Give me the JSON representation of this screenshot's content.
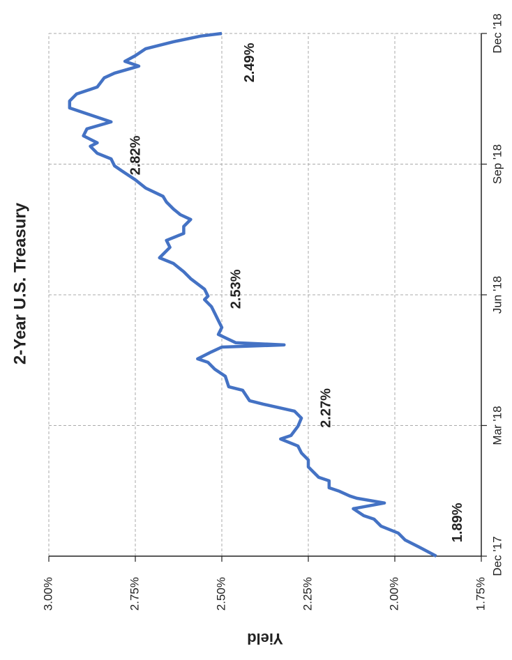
{
  "chart_data": {
    "type": "line",
    "title": "2-Year U.S. Treasury",
    "y_label": "Yield",
    "x": [
      0,
      0.21,
      0.37,
      0.53,
      0.69,
      0.85,
      0.93,
      1.09,
      1.22,
      1.33,
      1.38,
      1.49,
      1.57,
      1.73,
      1.81,
      1.89,
      2.05,
      2.21,
      2.37,
      2.53,
      2.69,
      2.77,
      2.98,
      3.17,
      3.33,
      3.49,
      3.57,
      3.81,
      3.89,
      4.13,
      4.29,
      4.45,
      4.53,
      4.69,
      4.8,
      4.85,
      4.9,
      5.09,
      5.25,
      5.41,
      5.57,
      5.73,
      5.89,
      5.97,
      6.13,
      6.37,
      6.53,
      6.72,
      6.85,
      6.93,
      7.09,
      7.25,
      7.41,
      7.57,
      7.73,
      7.84,
      7.97,
      8.13,
      8.26,
      8.45,
      8.64,
      8.85,
      8.96,
      9.12,
      9.25,
      9.41,
      9.49,
      9.65,
      9.81,
      9.97,
      10.13,
      10.29,
      10.45,
      10.61,
      10.77,
      10.98,
      11.09,
      11.25,
      11.36,
      11.49,
      11.65,
      11.81,
      11.94,
      12
    ],
    "series": [
      {
        "name": "2-Year U.S. Treasury",
        "color": "#4472c4",
        "values": [
          1.88,
          1.93,
          1.97,
          1.99,
          2.04,
          2.06,
          2.09,
          2.12,
          2.03,
          2.11,
          2.13,
          2.16,
          2.19,
          2.19,
          2.22,
          2.23,
          2.25,
          2.25,
          2.27,
          2.28,
          2.33,
          2.3,
          2.28,
          2.27,
          2.29,
          2.38,
          2.42,
          2.44,
          2.48,
          2.49,
          2.52,
          2.54,
          2.57,
          2.53,
          2.5,
          2.32,
          2.46,
          2.51,
          2.5,
          2.51,
          2.52,
          2.53,
          2.55,
          2.54,
          2.55,
          2.59,
          2.61,
          2.64,
          2.68,
          2.67,
          2.65,
          2.66,
          2.61,
          2.61,
          2.59,
          2.62,
          2.64,
          2.66,
          2.67,
          2.72,
          2.75,
          2.79,
          2.81,
          2.82,
          2.86,
          2.88,
          2.86,
          2.9,
          2.89,
          2.82,
          2.88,
          2.94,
          2.94,
          2.92,
          2.86,
          2.84,
          2.81,
          2.74,
          2.78,
          2.75,
          2.72,
          2.64,
          2.56,
          2.5
        ]
      }
    ],
    "xlim": [
      0,
      12
    ],
    "xticks": [
      {
        "value": 0,
        "label": "Dec '17"
      },
      {
        "value": 3,
        "label": "Mar '18"
      },
      {
        "value": 6,
        "label": "Jun '18"
      },
      {
        "value": 9,
        "label": "Sep '18"
      },
      {
        "value": 12,
        "label": "Dec '18"
      }
    ],
    "ylim": [
      1.75,
      3.0
    ],
    "yticks": [
      {
        "value": 1.75,
        "label": "1.75%"
      },
      {
        "value": 2.0,
        "label": "2.00%"
      },
      {
        "value": 2.25,
        "label": "2.25%"
      },
      {
        "value": 2.5,
        "label": "2.50%"
      },
      {
        "value": 2.75,
        "label": "2.75%"
      },
      {
        "value": 3.0,
        "label": "3.00%"
      }
    ],
    "annotations": [
      {
        "label": "1.89%",
        "value": 1.89,
        "x": 0.77
      },
      {
        "label": "2.27%",
        "value": 2.27,
        "x": 3.4
      },
      {
        "label": "2.53%",
        "value": 2.53,
        "x": 6.13
      },
      {
        "label": "2.82%",
        "value": 2.82,
        "x": 9.2
      },
      {
        "label": "2.49%",
        "value": 2.49,
        "x": 11.33
      }
    ],
    "grid": true
  }
}
